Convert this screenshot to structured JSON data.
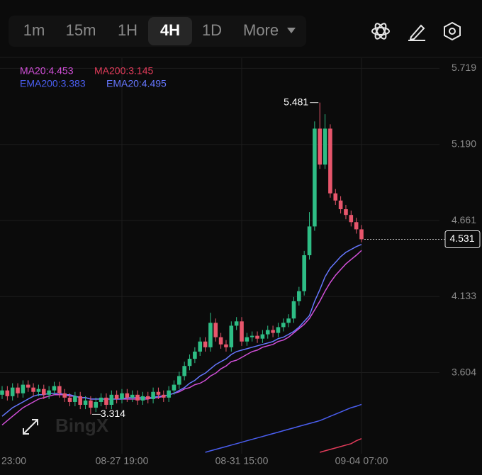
{
  "toolbar": {
    "intervals": [
      "1m",
      "15m",
      "1H",
      "4H",
      "1D"
    ],
    "selected": "4H",
    "more": "More"
  },
  "watermark": "BingX",
  "chart_data": {
    "type": "candlestick",
    "categories": [
      "23:00",
      null,
      null,
      null,
      null,
      null,
      null,
      null,
      null,
      null,
      null,
      null,
      null,
      null,
      null,
      null,
      null,
      null,
      null,
      null,
      null,
      null,
      null,
      "08-27 19:00",
      null,
      null,
      null,
      null,
      null,
      null,
      null,
      null,
      null,
      null,
      null,
      null,
      null,
      null,
      null,
      null,
      null,
      null,
      null,
      null,
      null,
      null,
      "08-31 15:00",
      null,
      null,
      null,
      null,
      null,
      null,
      null,
      null,
      null,
      null,
      null,
      null,
      null,
      null,
      null,
      null,
      null,
      null,
      null,
      null,
      null,
      null,
      "09-04 07:00"
    ],
    "open": [
      3.45,
      3.48,
      3.44,
      3.5,
      3.46,
      3.52,
      3.5,
      3.47,
      3.49,
      3.45,
      3.48,
      3.51,
      3.46,
      3.43,
      3.4,
      3.44,
      3.38,
      3.41,
      3.36,
      3.4,
      3.43,
      3.38,
      3.45,
      3.42,
      3.46,
      3.43,
      3.45,
      3.41,
      3.44,
      3.42,
      3.47,
      3.45,
      3.43,
      3.48,
      3.52,
      3.58,
      3.65,
      3.7,
      3.75,
      3.82,
      3.78,
      3.95,
      3.85,
      3.8,
      3.78,
      3.93,
      3.96,
      3.82,
      3.85,
      3.86,
      3.84,
      3.87,
      3.9,
      3.88,
      3.92,
      3.95,
      3.98,
      4.1,
      4.17,
      4.42,
      4.62,
      5.3,
      5.05,
      5.3,
      4.85,
      4.8,
      4.74,
      4.7,
      4.65,
      4.6
    ],
    "high": [
      3.51,
      3.51,
      3.53,
      3.53,
      3.55,
      3.55,
      3.53,
      3.52,
      3.52,
      3.51,
      3.54,
      3.54,
      3.49,
      3.46,
      3.47,
      3.47,
      3.44,
      3.44,
      3.43,
      3.46,
      3.46,
      3.48,
      3.48,
      3.49,
      3.49,
      3.48,
      3.48,
      3.47,
      3.47,
      3.5,
      3.5,
      3.48,
      3.51,
      3.55,
      3.61,
      3.68,
      3.73,
      3.78,
      3.85,
      3.85,
      4.02,
      3.98,
      3.88,
      3.83,
      3.96,
      3.99,
      3.99,
      3.88,
      3.89,
      3.89,
      3.9,
      3.93,
      3.93,
      3.95,
      3.98,
      4.01,
      4.13,
      4.2,
      4.45,
      4.72,
      5.35,
      5.481,
      5.4,
      5.33,
      4.88,
      4.83,
      4.77,
      4.73,
      4.68,
      4.63
    ],
    "low": [
      3.42,
      3.41,
      3.41,
      3.43,
      3.43,
      3.47,
      3.44,
      3.44,
      3.42,
      3.42,
      3.45,
      3.43,
      3.4,
      3.37,
      3.37,
      3.35,
      3.35,
      3.314,
      3.33,
      3.37,
      3.35,
      3.35,
      3.39,
      3.39,
      3.4,
      3.4,
      3.38,
      3.38,
      3.39,
      3.39,
      3.42,
      3.4,
      3.4,
      3.45,
      3.49,
      3.55,
      3.62,
      3.67,
      3.72,
      3.75,
      3.75,
      3.82,
      3.77,
      3.75,
      3.75,
      3.9,
      3.79,
      3.79,
      3.82,
      3.81,
      3.81,
      3.84,
      3.85,
      3.85,
      3.89,
      3.92,
      3.95,
      4.07,
      4.14,
      4.39,
      4.59,
      5.02,
      5.02,
      4.82,
      4.77,
      4.71,
      4.67,
      4.62,
      4.57,
      4.51
    ],
    "close": [
      3.48,
      3.44,
      3.5,
      3.46,
      3.52,
      3.5,
      3.47,
      3.49,
      3.45,
      3.48,
      3.51,
      3.46,
      3.43,
      3.4,
      3.44,
      3.38,
      3.41,
      3.36,
      3.4,
      3.43,
      3.38,
      3.45,
      3.42,
      3.46,
      3.43,
      3.45,
      3.41,
      3.44,
      3.42,
      3.47,
      3.45,
      3.43,
      3.48,
      3.52,
      3.58,
      3.65,
      3.7,
      3.75,
      3.82,
      3.78,
      3.95,
      3.85,
      3.8,
      3.78,
      3.93,
      3.96,
      3.82,
      3.85,
      3.86,
      3.84,
      3.87,
      3.9,
      3.88,
      3.92,
      3.95,
      3.98,
      4.1,
      4.17,
      4.42,
      4.62,
      5.3,
      5.05,
      5.3,
      4.85,
      4.8,
      4.74,
      4.7,
      4.65,
      4.6,
      4.531
    ],
    "up_color": "#2ebd85",
    "down_color": "#e8566c",
    "series": [
      {
        "name": "MA20:4.453",
        "color": "#d14fd8",
        "values": [
          3.24,
          3.27,
          3.3,
          3.33,
          3.36,
          3.38,
          3.4,
          3.42,
          3.43,
          3.44,
          3.45,
          3.45,
          3.45,
          3.44,
          3.44,
          3.43,
          3.43,
          3.42,
          3.42,
          3.42,
          3.42,
          3.42,
          3.42,
          3.42,
          3.42,
          3.42,
          3.42,
          3.42,
          3.42,
          3.43,
          3.43,
          3.44,
          3.45,
          3.46,
          3.47,
          3.49,
          3.5,
          3.52,
          3.53,
          3.55,
          3.58,
          3.6,
          3.63,
          3.65,
          3.68,
          3.69,
          3.71,
          3.73,
          3.75,
          3.76,
          3.78,
          3.79,
          3.8,
          3.82,
          3.83,
          3.85,
          3.88,
          3.91,
          3.94,
          3.98,
          4.04,
          4.1,
          4.17,
          4.23,
          4.28,
          4.32,
          4.36,
          4.39,
          4.42,
          4.453
        ]
      },
      {
        "name": "MA200:3.145",
        "color": "#e23b5a",
        "values": [
          null,
          null,
          null,
          null,
          null,
          null,
          null,
          null,
          null,
          null,
          null,
          null,
          null,
          null,
          null,
          null,
          null,
          null,
          null,
          null,
          null,
          null,
          null,
          null,
          null,
          null,
          null,
          null,
          null,
          null,
          null,
          null,
          null,
          null,
          null,
          null,
          null,
          null,
          null,
          null,
          null,
          null,
          null,
          null,
          null,
          null,
          null,
          null,
          null,
          null,
          null,
          null,
          null,
          null,
          null,
          null,
          null,
          null,
          null,
          null,
          null,
          3.05,
          3.06,
          3.07,
          3.08,
          3.09,
          3.1,
          3.11,
          3.13,
          3.145
        ]
      },
      {
        "name": "EMA200:3.383",
        "color": "#4a5ef0",
        "values": [
          null,
          null,
          null,
          null,
          null,
          null,
          null,
          null,
          null,
          null,
          null,
          null,
          null,
          null,
          null,
          null,
          null,
          null,
          null,
          null,
          null,
          null,
          null,
          null,
          null,
          null,
          null,
          null,
          null,
          null,
          null,
          null,
          null,
          null,
          null,
          null,
          null,
          null,
          null,
          3.05,
          3.06,
          3.07,
          3.08,
          3.09,
          3.1,
          3.11,
          3.12,
          3.13,
          3.14,
          3.15,
          3.16,
          3.17,
          3.18,
          3.19,
          3.2,
          3.21,
          3.22,
          3.23,
          3.24,
          3.25,
          3.26,
          3.27,
          3.285,
          3.3,
          3.315,
          3.33,
          3.345,
          3.36,
          3.37,
          3.383
        ]
      },
      {
        "name": "EMA20:4.495",
        "color": "#6677ff",
        "values": [
          3.3,
          3.33,
          3.36,
          3.38,
          3.4,
          3.42,
          3.44,
          3.45,
          3.45,
          3.46,
          3.46,
          3.46,
          3.45,
          3.45,
          3.44,
          3.43,
          3.43,
          3.42,
          3.42,
          3.42,
          3.42,
          3.42,
          3.42,
          3.42,
          3.43,
          3.43,
          3.43,
          3.43,
          3.43,
          3.43,
          3.44,
          3.44,
          3.45,
          3.46,
          3.48,
          3.5,
          3.53,
          3.55,
          3.58,
          3.6,
          3.63,
          3.66,
          3.68,
          3.7,
          3.73,
          3.75,
          3.76,
          3.77,
          3.78,
          3.79,
          3.8,
          3.81,
          3.82,
          3.84,
          3.85,
          3.87,
          3.89,
          3.92,
          3.96,
          4.0,
          4.1,
          4.18,
          4.27,
          4.33,
          4.37,
          4.41,
          4.44,
          4.46,
          4.48,
          4.495
        ]
      }
    ],
    "max_label": 5.481,
    "min_label": 3.314,
    "last_price": 4.531,
    "ylim": [
      3.04,
      5.79
    ],
    "yticks": [
      5.719,
      {
        "value": 5.19,
        "label": "5.190"
      },
      4.661,
      4.133,
      3.604
    ],
    "grid": true
  }
}
